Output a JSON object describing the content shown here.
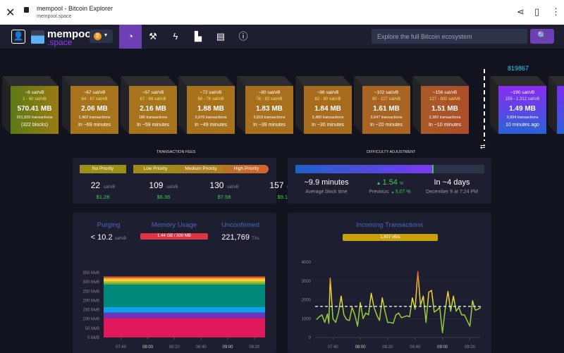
{
  "browser": {
    "title": "mempool - Bitcoin Explorer",
    "url": "mempool.space",
    "close_icon": "close-icon",
    "share_icon": "share-icon",
    "bookmark_icon": "bookmark-icon",
    "menu_icon": "more-vert-icon"
  },
  "nav": {
    "logo_line1": "mempool",
    "logo_line2": ".space",
    "network": "bitcoin",
    "items": [
      {
        "icon": "dashboard-icon",
        "active": true
      },
      {
        "icon": "hammer-icon"
      },
      {
        "icon": "lightning-icon"
      },
      {
        "icon": "chart-icon"
      },
      {
        "icon": "book-icon"
      },
      {
        "icon": "info-icon"
      }
    ],
    "search_placeholder": "Explore the full Bitcoin ecosystem",
    "search_icon": "search-icon"
  },
  "blocks": {
    "pending": [
      {
        "fee": "~8 sat/vB",
        "range": "1 - 60 sat/vB",
        "size": "570.41 MB",
        "txs": "201,820 transactions",
        "time": "(322 blocks)",
        "color": "#5b7a15",
        "color2": "#9a7a14"
      },
      {
        "fee": "~67 sat/vB",
        "range": "64 - 67 sat/vB",
        "size": "2.06 MB",
        "txs": "1,462 transactions",
        "time": "In ~69 minutes",
        "color": "#a8731d"
      },
      {
        "fee": "~67 sat/vB",
        "range": "67 - 68 sat/vB",
        "size": "2.16 MB",
        "txs": "186 transactions",
        "time": "In ~59 minutes",
        "color": "#a8731d"
      },
      {
        "fee": "~72 sat/vB",
        "range": "68 - 76 sat/vB",
        "size": "1.88 MB",
        "txs": "3,976 transactions",
        "time": "In ~49 minutes",
        "color": "#a8721d"
      },
      {
        "fee": "~80 sat/vB",
        "range": "76 - 82 sat/vB",
        "size": "1.83 MB",
        "txs": "3,816 transactions",
        "time": "In ~39 minutes",
        "color": "#a8701e"
      },
      {
        "fee": "~86 sat/vB",
        "range": "82 - 90 sat/vB",
        "size": "1.84 MB",
        "txs": "3,480 transactions",
        "time": "In ~30 minutes",
        "color": "#a86c1f"
      },
      {
        "fee": "~102 sat/vB",
        "range": "90 - 127 sat/vB",
        "size": "1.61 MB",
        "txs": "3,647 transactions",
        "time": "In ~20 minutes",
        "color": "#a86422"
      },
      {
        "fee": "~156 sat/vB",
        "range": "127 - 802 sat/vB",
        "size": "1.51 MB",
        "txs": "3,382 transactions",
        "time": "In ~10 minutes",
        "color": "#a85a26",
        "color2": "#ad4d2a"
      }
    ],
    "mined": [
      {
        "height": "819867",
        "fee": "~190 sat/vB",
        "range": "159 - 1,312 sat/vB",
        "size": "1.49 MB",
        "txs": "3,994 transactions",
        "time": "10 minutes ago",
        "color": "#8a2cf3",
        "color2": "#2a62d6"
      }
    ]
  },
  "fees": {
    "title": "Transaction Fees",
    "labels": [
      "No Priority",
      "Low Priority",
      "Medium Priority",
      "High Priority"
    ],
    "values": [
      "22",
      "109",
      "130",
      "157"
    ],
    "unit": "sat/vB",
    "usd": [
      "$1.28",
      "$6.36",
      "$7.58",
      "$9.15"
    ]
  },
  "difficulty": {
    "title": "Difficulty Adjustment",
    "progress_percent": 73,
    "avg_time": "~9.9 minutes",
    "avg_label": "Average block time",
    "change": "1.54",
    "change_unit": "%",
    "previous_label": "Previous:",
    "previous": "5.07",
    "previous_unit": "%",
    "eta": "In ~4 days",
    "eta_date": "December 9 at 7:24 PM"
  },
  "mempool": {
    "purging_label": "Purging",
    "purging_value": "< 10.2",
    "purging_unit": "sat/vB",
    "memory_label": "Memory Usage",
    "memory_value": "1.44 GB / 300 MB",
    "unconfirmed_label": "Unconfirmed",
    "unconfirmed_value": "221,769",
    "unconfirmed_unit": "TXs"
  },
  "incoming": {
    "title": "Incoming Transactions",
    "rate": "1,807 vB/s"
  },
  "chart_data": [
    {
      "type": "area",
      "stacked": true,
      "yticks": [
        "0 MvB",
        "50 MvB",
        "100 MvB",
        "150 MvB",
        "200 MvB",
        "250 MvB",
        "300 MvB",
        "350 MvB"
      ],
      "ylim": [
        0,
        350
      ],
      "xticks": [
        "07:40",
        "08:00",
        "08:20",
        "08:40",
        "09:00",
        "09:20"
      ],
      "layers": [
        {
          "to": 105,
          "color": "#e0195c"
        },
        {
          "to": 135,
          "color": "#6a35b8"
        },
        {
          "to": 165,
          "color": "#0ea0e8"
        },
        {
          "to": 285,
          "color": "#00897b"
        },
        {
          "to": 295,
          "color": "#5fae3c"
        },
        {
          "to": 303,
          "color": "#a9c933"
        },
        {
          "to": 312,
          "color": "#f4d33c"
        },
        {
          "to": 320,
          "color": "#f7b731"
        },
        {
          "to": 326,
          "color": "#ef7a2e"
        },
        {
          "to": 330,
          "color": "#d83a2a"
        }
      ]
    },
    {
      "type": "line",
      "ylim": [
        0,
        4000
      ],
      "yticks": [
        "0",
        "1000",
        "2000",
        "3000",
        "4000"
      ],
      "xticks": [
        "07:40",
        "08:00",
        "08:20",
        "08:40",
        "09:00",
        "09:20"
      ],
      "reference_line": 1650,
      "x": [
        "07:28",
        "07:30",
        "07:32",
        "07:34",
        "07:36",
        "07:37",
        "07:38",
        "07:40",
        "07:42",
        "07:44",
        "07:46",
        "07:48",
        "07:50",
        "07:52",
        "07:54",
        "07:56",
        "07:58",
        "08:00",
        "08:02",
        "08:04",
        "08:06",
        "08:08",
        "08:10",
        "08:12",
        "08:14",
        "08:16",
        "08:18",
        "08:20",
        "08:22",
        "08:24",
        "08:26",
        "08:28",
        "08:30",
        "08:32",
        "08:34",
        "08:36",
        "08:38",
        "08:40",
        "08:42",
        "08:44",
        "08:46",
        "08:48",
        "08:50",
        "08:52",
        "08:54",
        "08:56",
        "08:58",
        "09:00",
        "09:02",
        "09:04",
        "09:06",
        "09:08",
        "09:10",
        "09:12",
        "09:14",
        "09:16",
        "09:18",
        "09:20",
        "09:22",
        "09:24",
        "09:26",
        "09:28"
      ],
      "values": [
        950,
        1100,
        1200,
        800,
        1250,
        750,
        3150,
        1000,
        800,
        1300,
        2200,
        1200,
        950,
        900,
        1600,
        1200,
        600,
        1850,
        1000,
        1300,
        1200,
        2350,
        1600,
        1200,
        900,
        2100,
        1400,
        800,
        800,
        750,
        1200,
        1300,
        1050,
        1100,
        1150,
        1100,
        2100,
        1500,
        3500,
        1700,
        2200,
        800,
        2400,
        2500,
        1350,
        1450,
        1600,
        250,
        1500,
        2450,
        1400,
        2200,
        1400,
        1600,
        1200,
        1200,
        900,
        600,
        1950,
        1450,
        1500,
        1600
      ]
    }
  ]
}
